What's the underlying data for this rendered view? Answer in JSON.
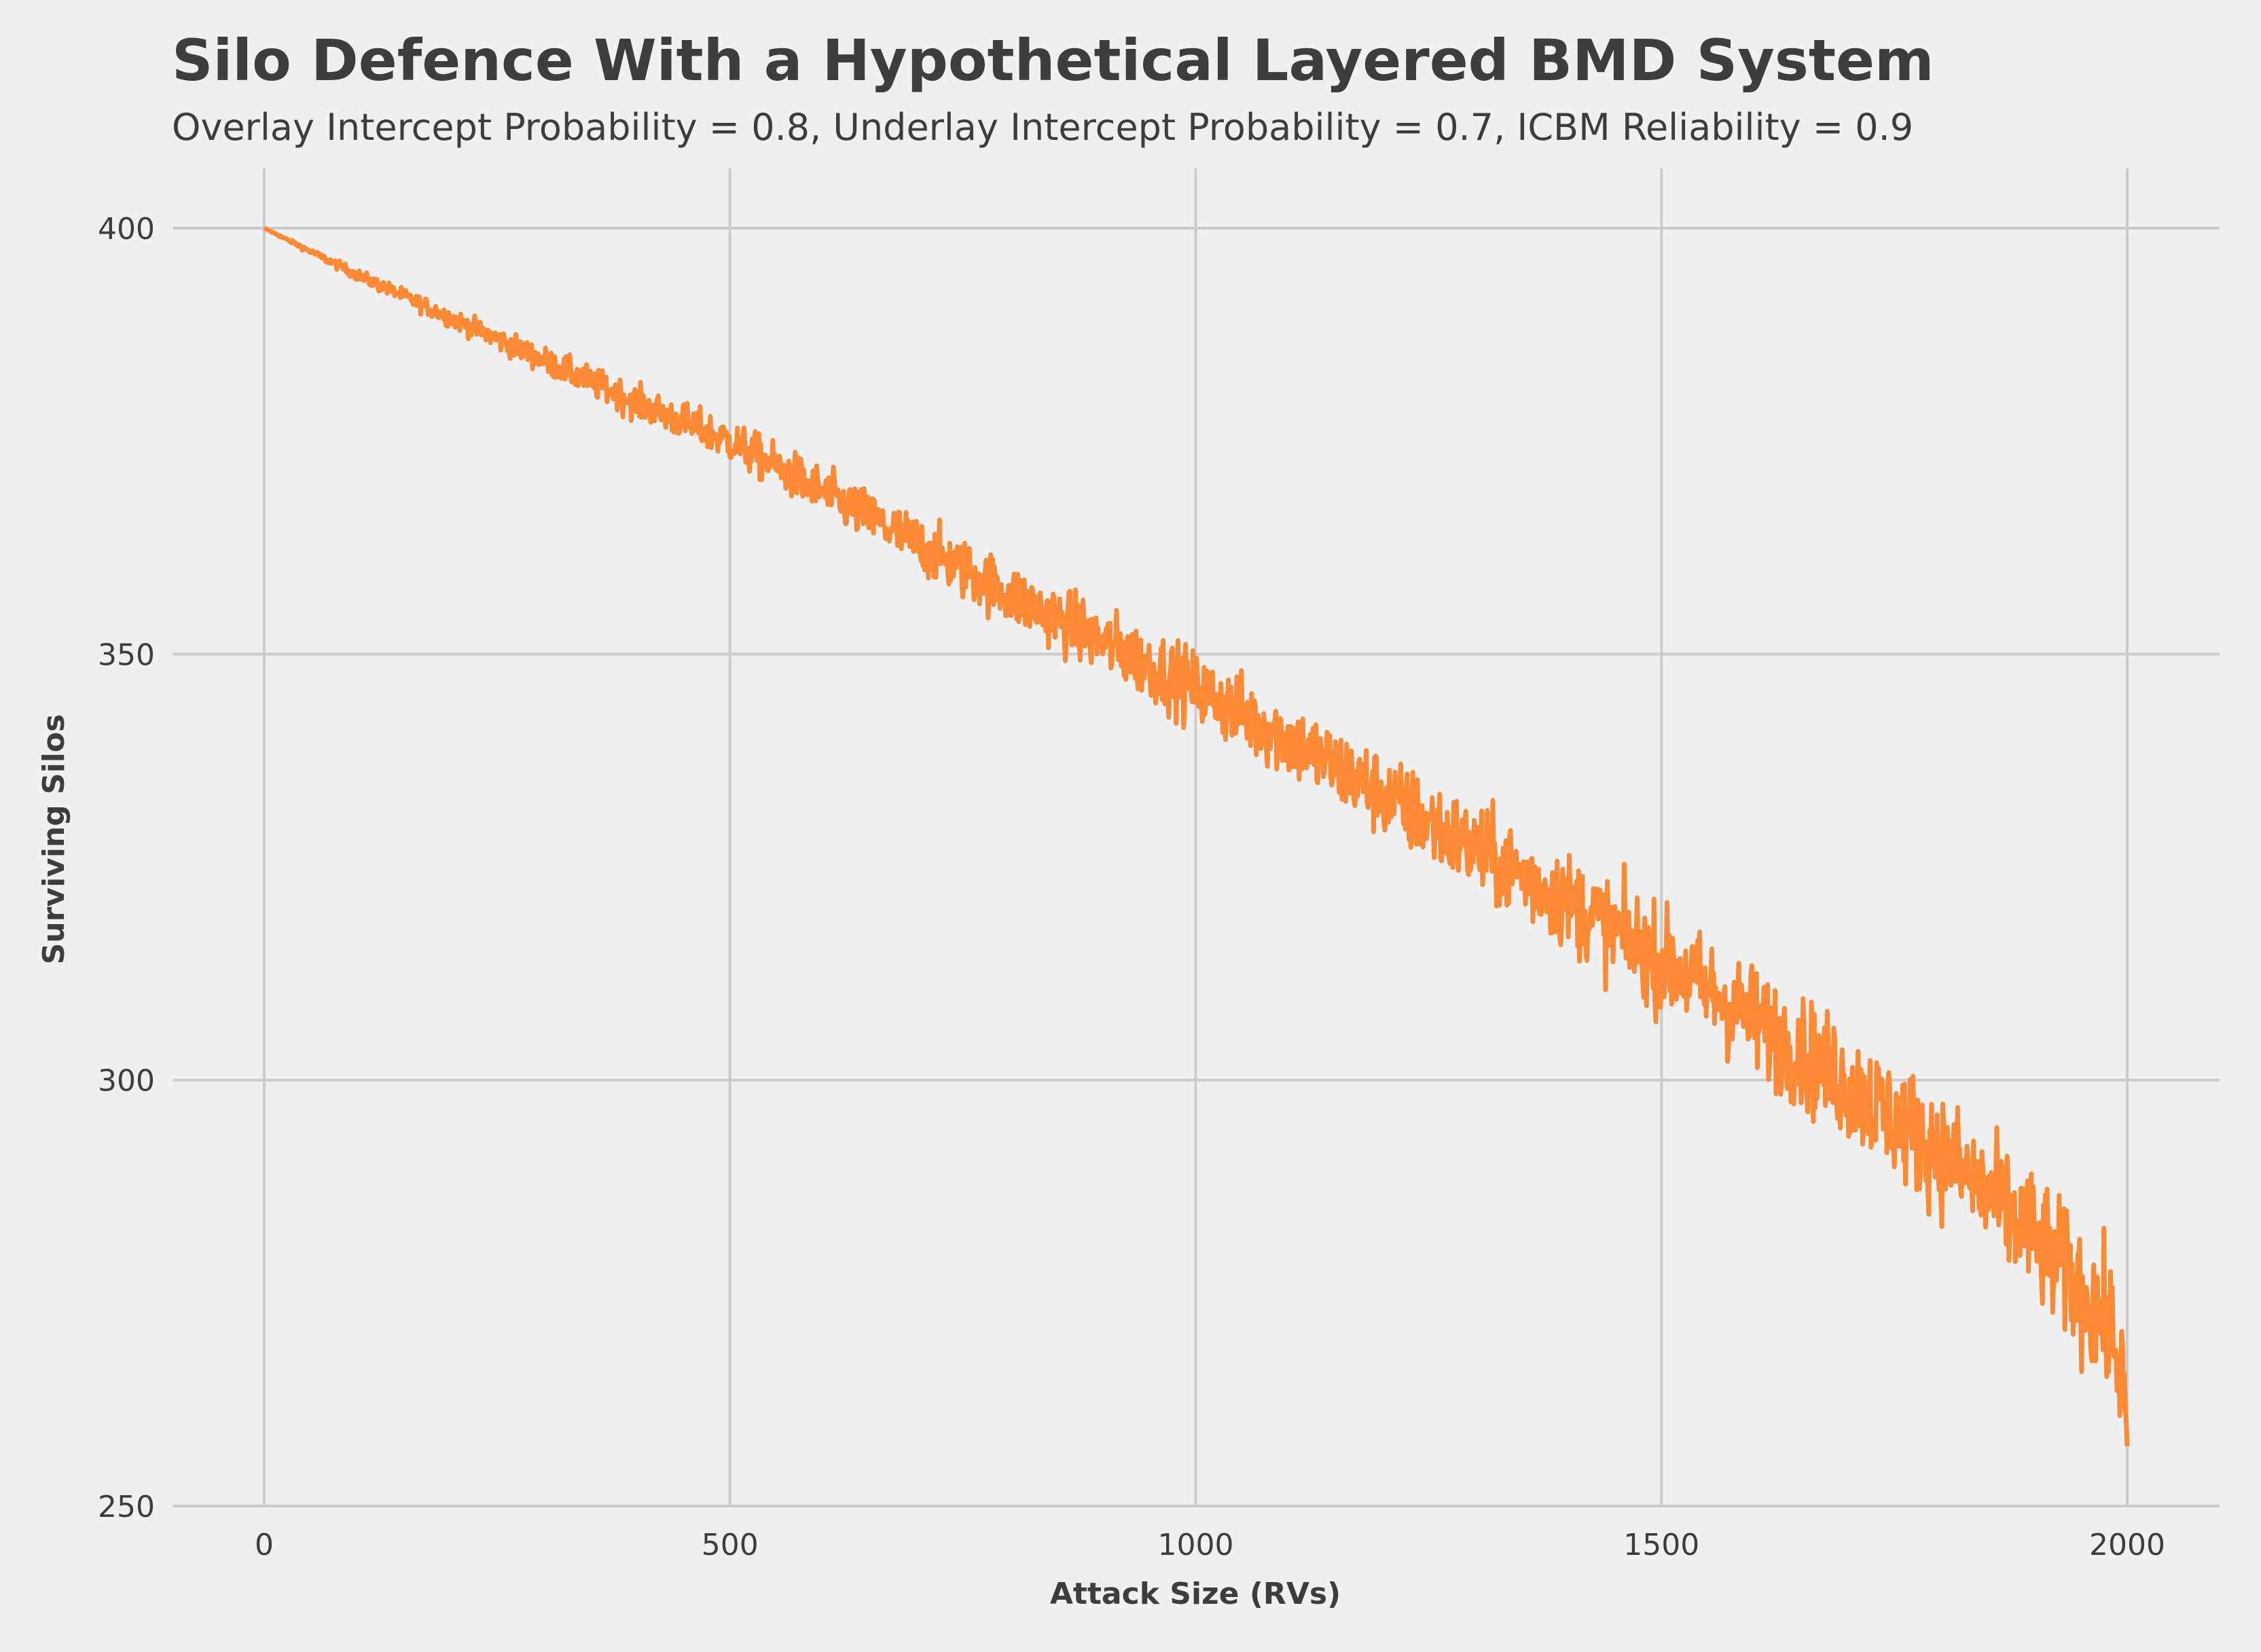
{
  "chart_data": {
    "type": "line",
    "title": "Silo Defence With a Hypothetical Layered BMD System",
    "subtitle": "Overlay Intercept Probability = 0.8, Underlay Intercept Probability = 0.7, ICBM Reliability = 0.9",
    "xlabel": "Attack Size (RVs)",
    "ylabel": "Surviving Silos",
    "xlim": [
      -100,
      2100
    ],
    "ylim": [
      250,
      407
    ],
    "xticks": [
      "0",
      "500",
      "1000",
      "1500",
      "2000"
    ],
    "yticks": [
      "250",
      "300",
      "350",
      "400"
    ],
    "grid": true,
    "line_color": "#fc8a34",
    "background": "#f0f0f0",
    "grid_color": "#cbcbcb",
    "series": [
      {
        "x": [
          0,
          100,
          200,
          300,
          400,
          500,
          600,
          700,
          800,
          900,
          1000,
          1100,
          1200,
          1300,
          1400,
          1500,
          1600,
          1700,
          1800,
          1850,
          1900,
          1950,
          1980,
          1995,
          2000
        ],
        "values": [
          400,
          394.5,
          389.5,
          384.5,
          379.5,
          375,
          369,
          363,
          357,
          351.5,
          346,
          340,
          333.5,
          327,
          321,
          314,
          307,
          299.5,
          291.5,
          286.5,
          281.5,
          275.5,
          271,
          266,
          257
        ],
        "noise_amplitude": [
          0,
          0.6,
          1.0,
          1.4,
          1.8,
          2.2,
          2.6,
          3.0,
          3.3,
          3.6,
          3.9,
          4.2,
          4.5,
          4.8,
          5.1,
          5.4,
          5.7,
          6.0,
          6.3,
          6.5,
          6.7,
          6.9,
          7.0,
          7.0,
          0
        ]
      }
    ]
  }
}
